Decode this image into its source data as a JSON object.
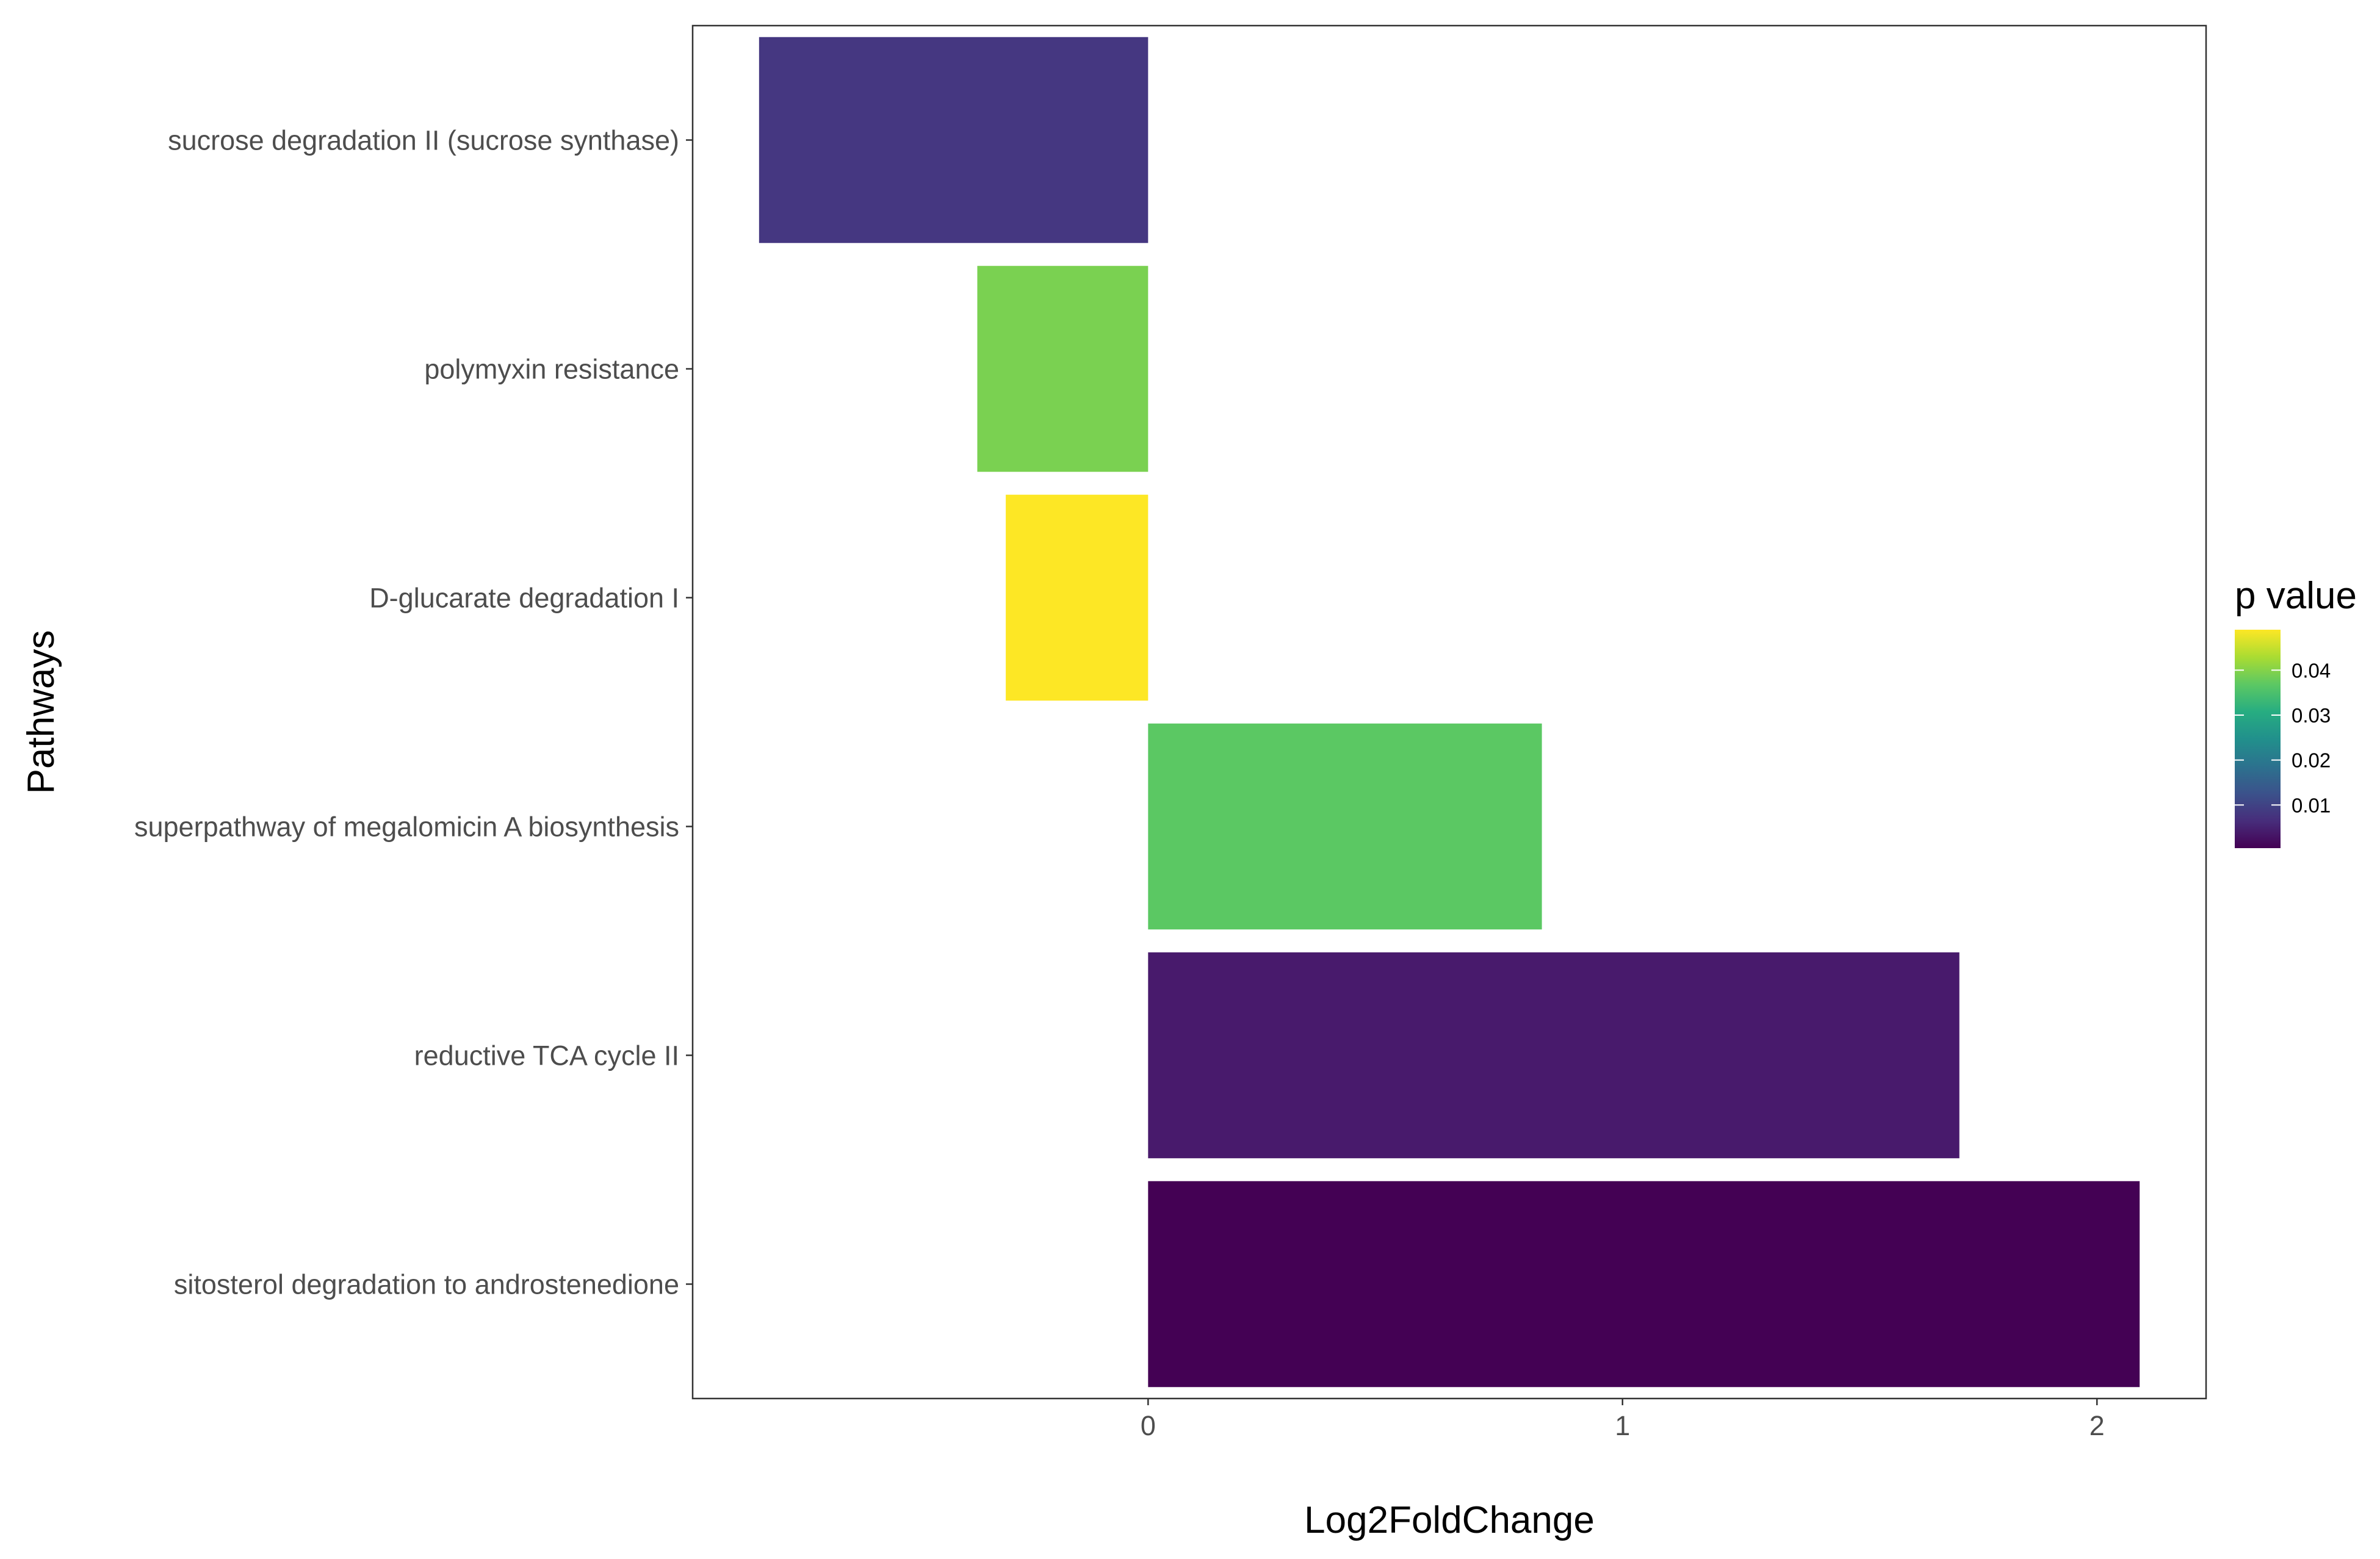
{
  "chart_data": {
    "type": "bar",
    "orientation": "horizontal",
    "categories": [
      "sucrose degradation II (sucrose synthase)",
      "polymyxin resistance",
      "D-glucarate degradation I",
      "superpathway of megalomicin A biosynthesis",
      "reductive TCA cycle II",
      "sitosterol degradation to androstenedione"
    ],
    "values": [
      -0.82,
      -0.36,
      -0.3,
      0.83,
      1.71,
      2.09
    ],
    "p_values": [
      0.008,
      0.036,
      0.049,
      0.034,
      0.003,
      0.0005
    ],
    "colors": [
      "#453781",
      "#7AD151",
      "#FDE725",
      "#5BC863",
      "#481A6C",
      "#440154"
    ],
    "xlabel": "Log2FoldChange",
    "ylabel": "Pathways",
    "xlim": [
      -0.96,
      2.23
    ],
    "xticks": [
      0,
      1,
      2
    ],
    "xtick_labels": [
      "0",
      "1",
      "2"
    ],
    "grid": false,
    "legend": {
      "title": "p value",
      "type": "colorbar",
      "position": "right",
      "range": [
        0.0004,
        0.049
      ],
      "ticks": [
        0.01,
        0.02,
        0.03,
        0.04
      ],
      "tick_labels": [
        "0.01",
        "0.02",
        "0.03",
        "0.04"
      ],
      "colormap": "viridis"
    }
  }
}
